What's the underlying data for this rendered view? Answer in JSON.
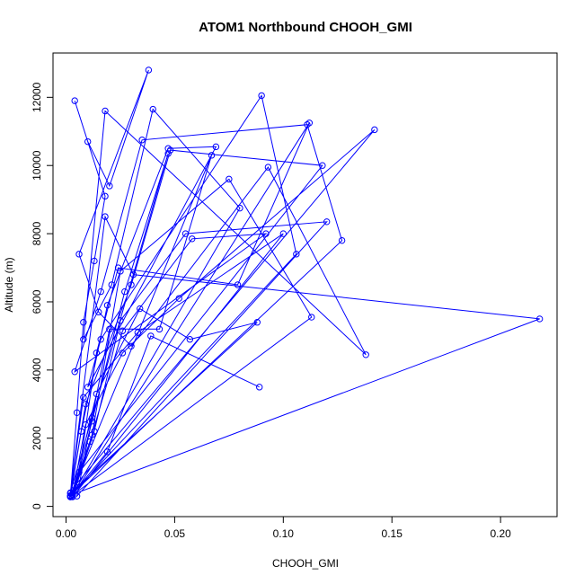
{
  "chart_data": {
    "type": "scatter",
    "title": "ATOM1 Northbound CHOOH_GMI",
    "xlabel": "CHOOH_GMI",
    "ylabel": "Altitude (m)",
    "xlim": [
      -0.006,
      0.226
    ],
    "ylim": [
      -300,
      13300
    ],
    "xticks": [
      "0.00",
      "0.05",
      "0.10",
      "0.15",
      "0.20"
    ],
    "xtick_values": [
      0,
      0.05,
      0.1,
      0.15,
      0.2
    ],
    "yticks": [
      "0",
      "2000",
      "4000",
      "6000",
      "8000",
      "10000",
      "12000"
    ],
    "ytick_values": [
      0,
      2000,
      4000,
      6000,
      8000,
      10000,
      12000
    ],
    "grid": false,
    "color": "#0000ff",
    "marker": "open-circle",
    "connect_points": true,
    "series": [
      {
        "x": [
          0.002,
          0.005,
          0.008,
          0.013,
          0.018,
          0.004,
          0.01,
          0.02,
          0.038,
          0.006,
          0.015,
          0.03,
          0.093,
          0.138,
          0.018,
          0.008,
          0.021,
          0.04,
          0.08,
          0.003,
          0.012,
          0.025,
          0.075,
          0.113,
          0.002,
          0.007,
          0.019,
          0.047,
          0.069,
          0.01,
          0.016,
          0.09,
          0.106,
          0.002,
          0.011,
          0.026,
          0.058,
          0.092,
          0.004,
          0.016,
          0.035,
          0.111,
          0.127,
          0.002,
          0.009,
          0.03,
          0.048,
          0.118,
          0.006,
          0.014,
          0.024,
          0.079,
          0.112,
          0.003,
          0.012,
          0.027,
          0.047,
          0.002,
          0.018,
          0.031,
          0.218,
          0.003,
          0.009,
          0.026,
          0.052,
          0.142,
          0.004,
          0.014,
          0.034,
          0.057,
          0.088,
          0.002,
          0.008,
          0.033,
          0.1,
          0.003,
          0.013,
          0.025,
          0.055,
          0.12,
          0.005,
          0.012,
          0.02,
          0.043,
          0.067,
          0.002,
          0.019,
          0.039,
          0.089
        ],
        "y": [
          300,
          2750,
          5400,
          7200,
          9100,
          11900,
          10700,
          9400,
          12800,
          7400,
          5700,
          4700,
          9950,
          4450,
          11600,
          4900,
          6500,
          11650,
          8750,
          350,
          2100,
          6900,
          9600,
          5550,
          280,
          2200,
          5900,
          10500,
          10550,
          3500,
          4900,
          12050,
          7400,
          300,
          1900,
          5150,
          7850,
          8000,
          3950,
          6300,
          10750,
          11200,
          7800,
          320,
          3000,
          6500,
          10450,
          10000,
          1000,
          4500,
          7000,
          6500,
          11250,
          300,
          2500,
          6300,
          10350,
          400,
          8500,
          6800,
          5500,
          350,
          2400,
          4500,
          6100,
          11050,
          600,
          3300,
          5800,
          4900,
          5400,
          380,
          3200,
          5100,
          8000,
          280,
          2200,
          5450,
          8000,
          8350,
          300,
          2600,
          5200,
          5200,
          10300,
          280,
          1600,
          5000,
          3500
        ]
      }
    ]
  }
}
